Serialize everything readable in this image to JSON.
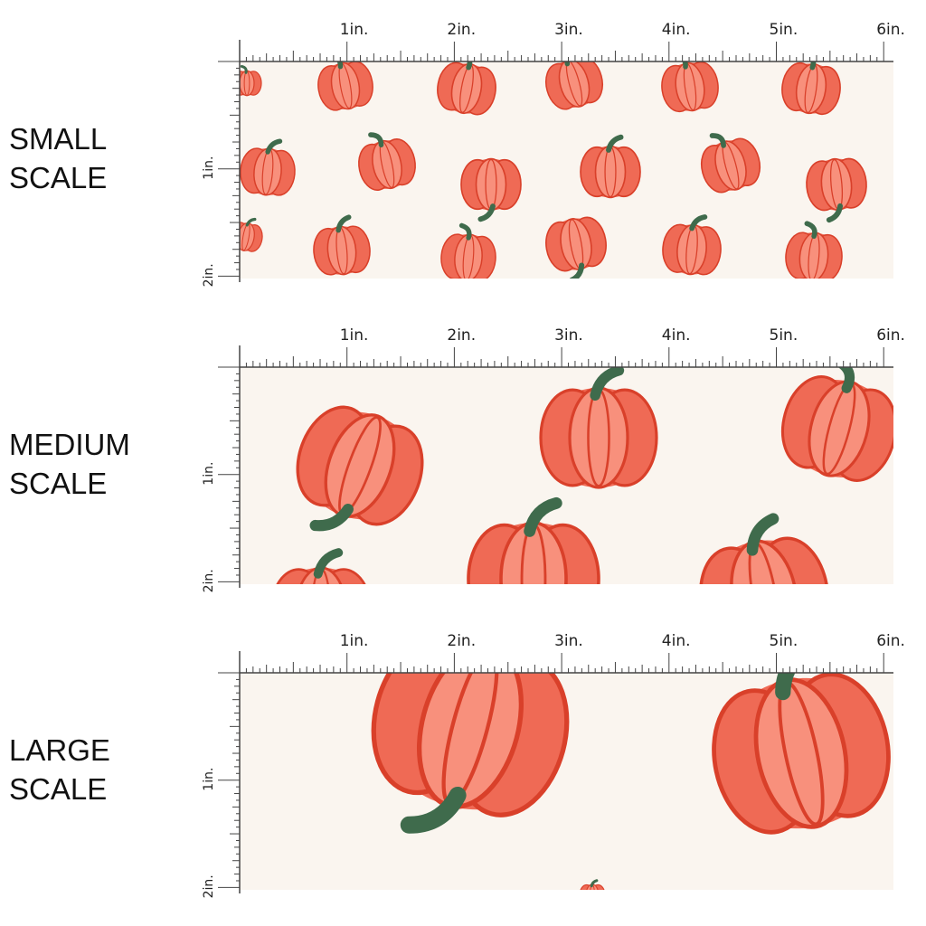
{
  "colors": {
    "background": "#ffffff",
    "fabric": "#faf5ef",
    "pumpkin": "#ef6a55",
    "pumpkin_ridge": "#d9402a",
    "pumpkin_highlight": "#f8907c",
    "stem": "#3f6b4c",
    "ruler": "#444444"
  },
  "ruler": {
    "h_labels": [
      "1in.",
      "2in.",
      "3in.",
      "4in.",
      "5in.",
      "6in."
    ],
    "v_labels": [
      "1in.",
      "2in."
    ]
  },
  "swatches": [
    {
      "label_line1": "SMALL",
      "label_line2": "SCALE",
      "motif": "pumpkin-icon"
    },
    {
      "label_line1": "MEDIUM",
      "label_line2": "SCALE",
      "motif": "pumpkin-icon"
    },
    {
      "label_line1": "LARGE",
      "label_line2": "SCALE",
      "motif": "pumpkin-icon"
    }
  ]
}
